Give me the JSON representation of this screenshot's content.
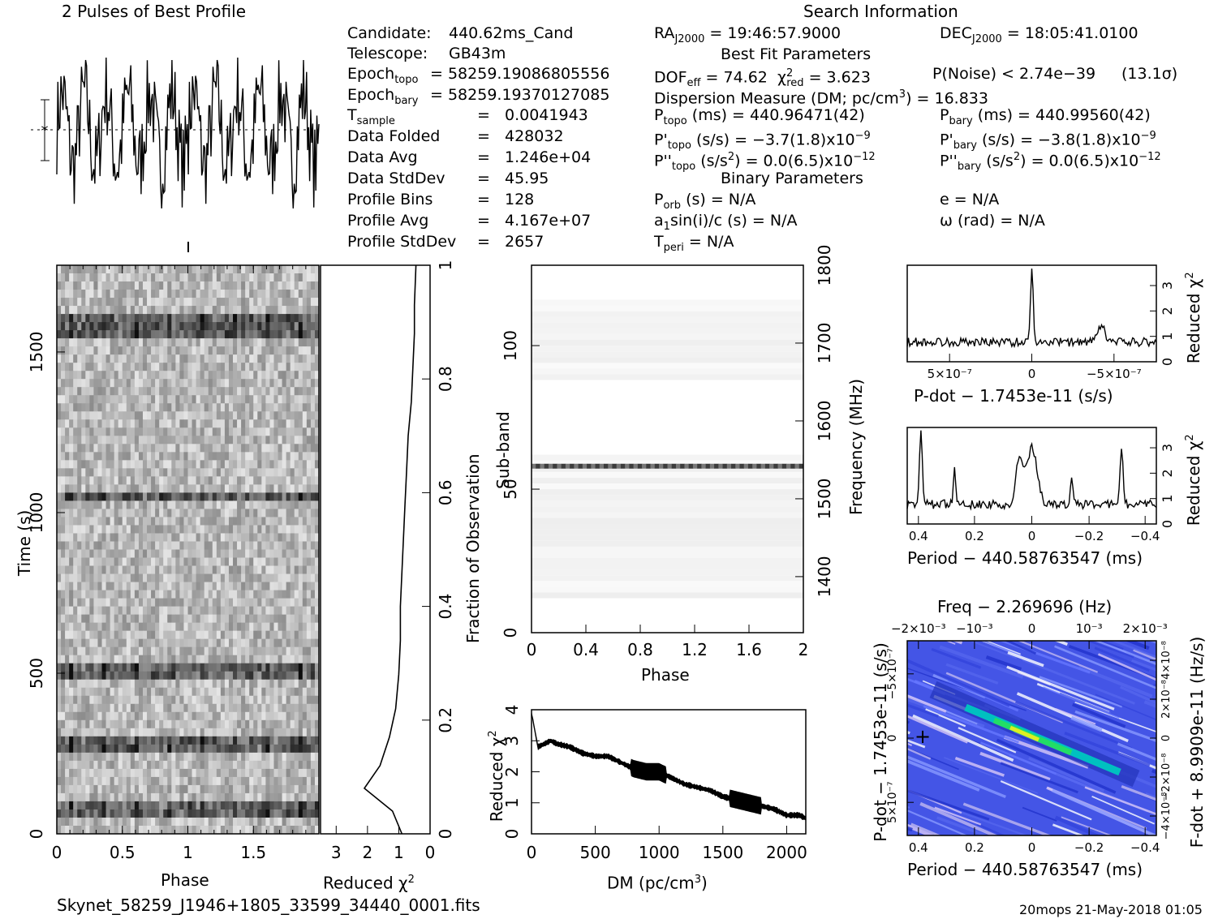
{
  "header": {
    "profile_title": "2 Pulses of Best Profile",
    "search_title": "Search Information",
    "best_fit_title": "Best Fit Parameters",
    "binary_title": "Binary Parameters"
  },
  "info_left": [
    {
      "label": "Candidate:",
      "value": "440.62ms_Cand"
    },
    {
      "label": "Telescope:",
      "value": "GB43m"
    },
    {
      "label": "Epoch",
      "sub": "topo",
      "value": "= 58259.19086805556"
    },
    {
      "label": "Epoch",
      "sub": "bary",
      "value": "= 58259.19370127085"
    },
    {
      "label": "T",
      "sub": "sample",
      "value": "0.0041943"
    },
    {
      "label": "Data Folded",
      "value": "428032"
    },
    {
      "label": "Data Avg",
      "value": "1.246e+04"
    },
    {
      "label": "Data StdDev",
      "value": "45.95"
    },
    {
      "label": "Profile Bins",
      "value": "128"
    },
    {
      "label": "Profile Avg",
      "value": "4.167e+07"
    },
    {
      "label": "Profile StdDev",
      "value": "2657"
    }
  ],
  "info_right": {
    "ra": "RA",
    "ra_sub": "J2000",
    "ra_val": "= 19:46:57.9000",
    "dec": "DEC",
    "dec_sub": "J2000",
    "dec_val": "= 18:05:41.0100",
    "dof_line": "DOF",
    "dof_sub": "eff",
    "dof_val": "= 74.62",
    "chi_val": "= 3.623",
    "pnoise": "P(Noise) < 2.74e−39",
    "sigma": "(13.1σ)",
    "dm_line": "Dispersion Measure (DM; pc/cm",
    "dm_val": ") = 16.833",
    "ptopo": "(ms) =  440.96471(42)",
    "pbary": "(ms) =  440.99560(42)",
    "pdtopo": "(s/s) = −3.7(1.8)x10",
    "pdtopo_exp": "−9",
    "pdbary": "(s/s) = −3.8(1.8)x10",
    "pdbary_exp": "−9",
    "pddtopo": "(s/s",
    "pddtopo_val": ") = 0.0(6.5)x10",
    "pddtopo_exp": "−12",
    "pddbary": "(s/s",
    "pddbary_val": ") = 0.0(6.5)x10",
    "pddbary_exp": "−12",
    "porb": "(s) = N/A",
    "e": "e = N/A",
    "a1": "a",
    "a1_rest": "sin(i)/c (s) = N/A",
    "omega": "ω (rad) = N/A",
    "tperi": "= N/A"
  },
  "axes": {
    "time_label": "Time (s)",
    "phase_label": "Phase",
    "reduced_chi": "Reduced χ",
    "fraction_label": "Fraction of Observation",
    "subband_label": "Sub-band",
    "frequency_label": "Frequency (MHz)",
    "dm_label": "DM (pc/cm",
    "pdot_label": "P-dot − 1.7453e-11 (s/s)",
    "period_label": "Period − 440.58763547 (ms)",
    "freq_label": "Freq − 2.269696 (Hz)",
    "pdot_side": "P-dot − 1.7453e-11 (s/s)",
    "fdot_side": "F-dot + 8.9909e-11 (Hz/s)"
  },
  "ticks": {
    "time": [
      "0",
      "500",
      "1000",
      "1500"
    ],
    "phase": [
      "0",
      "0.5",
      "1",
      "1.5"
    ],
    "redchi_main": [
      "3",
      "2",
      "1",
      "0"
    ],
    "fraction": [
      "0",
      "0.2",
      "0.4",
      "0.6",
      "0.8",
      "1"
    ],
    "subband": [
      "0",
      "50",
      "100"
    ],
    "phase2": [
      "0",
      "0.4",
      "0.8",
      "1.2",
      "1.6",
      "2"
    ],
    "freq": [
      "1400",
      "1500",
      "1600",
      "1700",
      "1800"
    ],
    "dm": [
      "0",
      "500",
      "1000",
      "1500",
      "2000"
    ],
    "dm_chi": [
      "0",
      "1",
      "2",
      "3",
      "4"
    ],
    "pdot_x": [
      "5×10⁻⁷",
      "0",
      "−5×10⁻⁷"
    ],
    "small_chi": [
      "0",
      "1",
      "2",
      "3"
    ],
    "period_x": [
      "0.4",
      "0.2",
      "0",
      "−0.2",
      "−0.4"
    ],
    "freq_top": [
      "−2×10⁻³",
      "−10⁻³",
      "0",
      "10⁻³",
      "2×10⁻³"
    ],
    "pdot_left": [
      "−5×10⁻⁷",
      "0",
      "5×10⁻⁷"
    ],
    "fdot_right": [
      "4×10⁻⁸",
      "2×10⁻⁸",
      "0",
      "−2×10⁻⁸",
      "−4×10⁻⁸"
    ]
  },
  "footer": {
    "filename": "Skynet_58259_J1946+1805_33599_34440_0001.fits",
    "stamp": "20mops 21-May-2018 01:05"
  },
  "chart_data": [
    {
      "type": "line",
      "title": "2 Pulses of Best Profile",
      "x": "phase 0–2 (256 points)",
      "xlabel": "",
      "ylabel": ""
    },
    {
      "type": "heatmap",
      "xlabel": "Phase",
      "ylabel": "Time (s)",
      "xlim": [
        0,
        2
      ],
      "ylim": [
        0,
        1770
      ],
      "strong_rows_time_s": [
        80,
        280,
        510,
        1050,
        1555,
        1600
      ]
    },
    {
      "type": "line",
      "xlabel": "Reduced χ²",
      "ylabel": "Fraction of Observation",
      "x_reversed": true,
      "xlim": [
        0,
        3.5
      ],
      "ylim": [
        0,
        1
      ],
      "x": [
        0.9,
        1.2,
        2.1,
        1.6,
        1.3,
        1.1,
        1.0,
        0.95,
        0.95,
        0.9,
        0.85,
        0.8,
        0.75,
        0.7,
        0.6,
        0.55,
        0.5,
        0.5,
        0.45
      ],
      "y": [
        0.0,
        0.04,
        0.08,
        0.12,
        0.17,
        0.22,
        0.28,
        0.34,
        0.4,
        0.46,
        0.52,
        0.58,
        0.64,
        0.7,
        0.76,
        0.82,
        0.88,
        0.93,
        1.0
      ]
    },
    {
      "type": "heatmap",
      "xlabel": "Phase",
      "ylabel": "Sub-band",
      "xlim": [
        0,
        2
      ],
      "ylim": [
        0,
        128
      ],
      "strong_subband": 58
    },
    {
      "type": "line",
      "xlabel": "DM (pc/cm³)",
      "ylabel": "Reduced χ²",
      "xlim": [
        0,
        2150
      ],
      "ylim": [
        0,
        4
      ],
      "x": [
        0,
        50,
        100,
        150,
        200,
        300,
        400,
        500,
        600,
        700,
        800,
        900,
        1000,
        1100,
        1200,
        1300,
        1400,
        1500,
        1600,
        1700,
        1800,
        1900,
        2000,
        2100,
        2150
      ],
      "y": [
        3.9,
        2.8,
        2.9,
        3.0,
        2.9,
        2.8,
        2.6,
        2.5,
        2.5,
        2.3,
        2.1,
        2.0,
        2.0,
        1.8,
        1.6,
        1.5,
        1.4,
        1.2,
        1.1,
        1.0,
        0.9,
        0.8,
        0.6,
        0.6,
        0.5
      ]
    },
    {
      "type": "line",
      "xlabel": "P-dot − 1.7453e-11 (s/s)",
      "ylabel": "Reduced χ²",
      "peak_x": 0,
      "peak_y": 3.7,
      "ylim": [
        0,
        3.8
      ]
    },
    {
      "type": "line",
      "xlabel": "Period − 440.58763547 (ms)",
      "ylabel": "Reduced χ²",
      "xlim": [
        0.44,
        -0.44
      ],
      "ylim": [
        0,
        3.8
      ],
      "peaks_x": [
        0.39,
        0.27,
        0.02,
        0.0,
        -0.13,
        -0.3
      ]
    },
    {
      "type": "heatmap",
      "xlabel": "Period − 440.58763547 (ms)",
      "ylabel": "P-dot − 1.7453e-11 (s/s)",
      "xlim": [
        0.44,
        -0.44
      ]
    }
  ]
}
